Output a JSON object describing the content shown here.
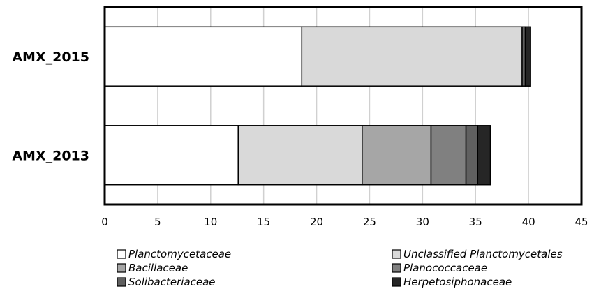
{
  "chart_data": {
    "type": "bar",
    "orientation": "horizontal",
    "stacked": true,
    "categories": [
      "AMX_2015",
      "AMX_2013"
    ],
    "series": [
      {
        "name": "Planctomycetaceae",
        "values": [
          18.6,
          12.6
        ],
        "color": "#ffffff"
      },
      {
        "name": "Unclassified Planctomycetales",
        "values": [
          20.8,
          11.7
        ],
        "color": "#d9d9d9"
      },
      {
        "name": "Bacillaceae",
        "values": [
          0.0,
          6.5
        ],
        "color": "#a6a6a6"
      },
      {
        "name": "Planococcaceae",
        "values": [
          0.0,
          3.3
        ],
        "color": "#808080"
      },
      {
        "name": "Solibacteriaceae",
        "values": [
          0.3,
          1.1
        ],
        "color": "#606060"
      },
      {
        "name": "Herpetosiphonaceae",
        "values": [
          0.5,
          1.2
        ],
        "color": "#262626"
      }
    ],
    "xlim": [
      0,
      45
    ],
    "xticks": [
      0,
      5,
      10,
      15,
      20,
      25,
      30,
      35,
      40,
      45
    ],
    "grid": "vertical",
    "legend_position": "bottom",
    "title": "",
    "xlabel": "",
    "ylabel": ""
  }
}
